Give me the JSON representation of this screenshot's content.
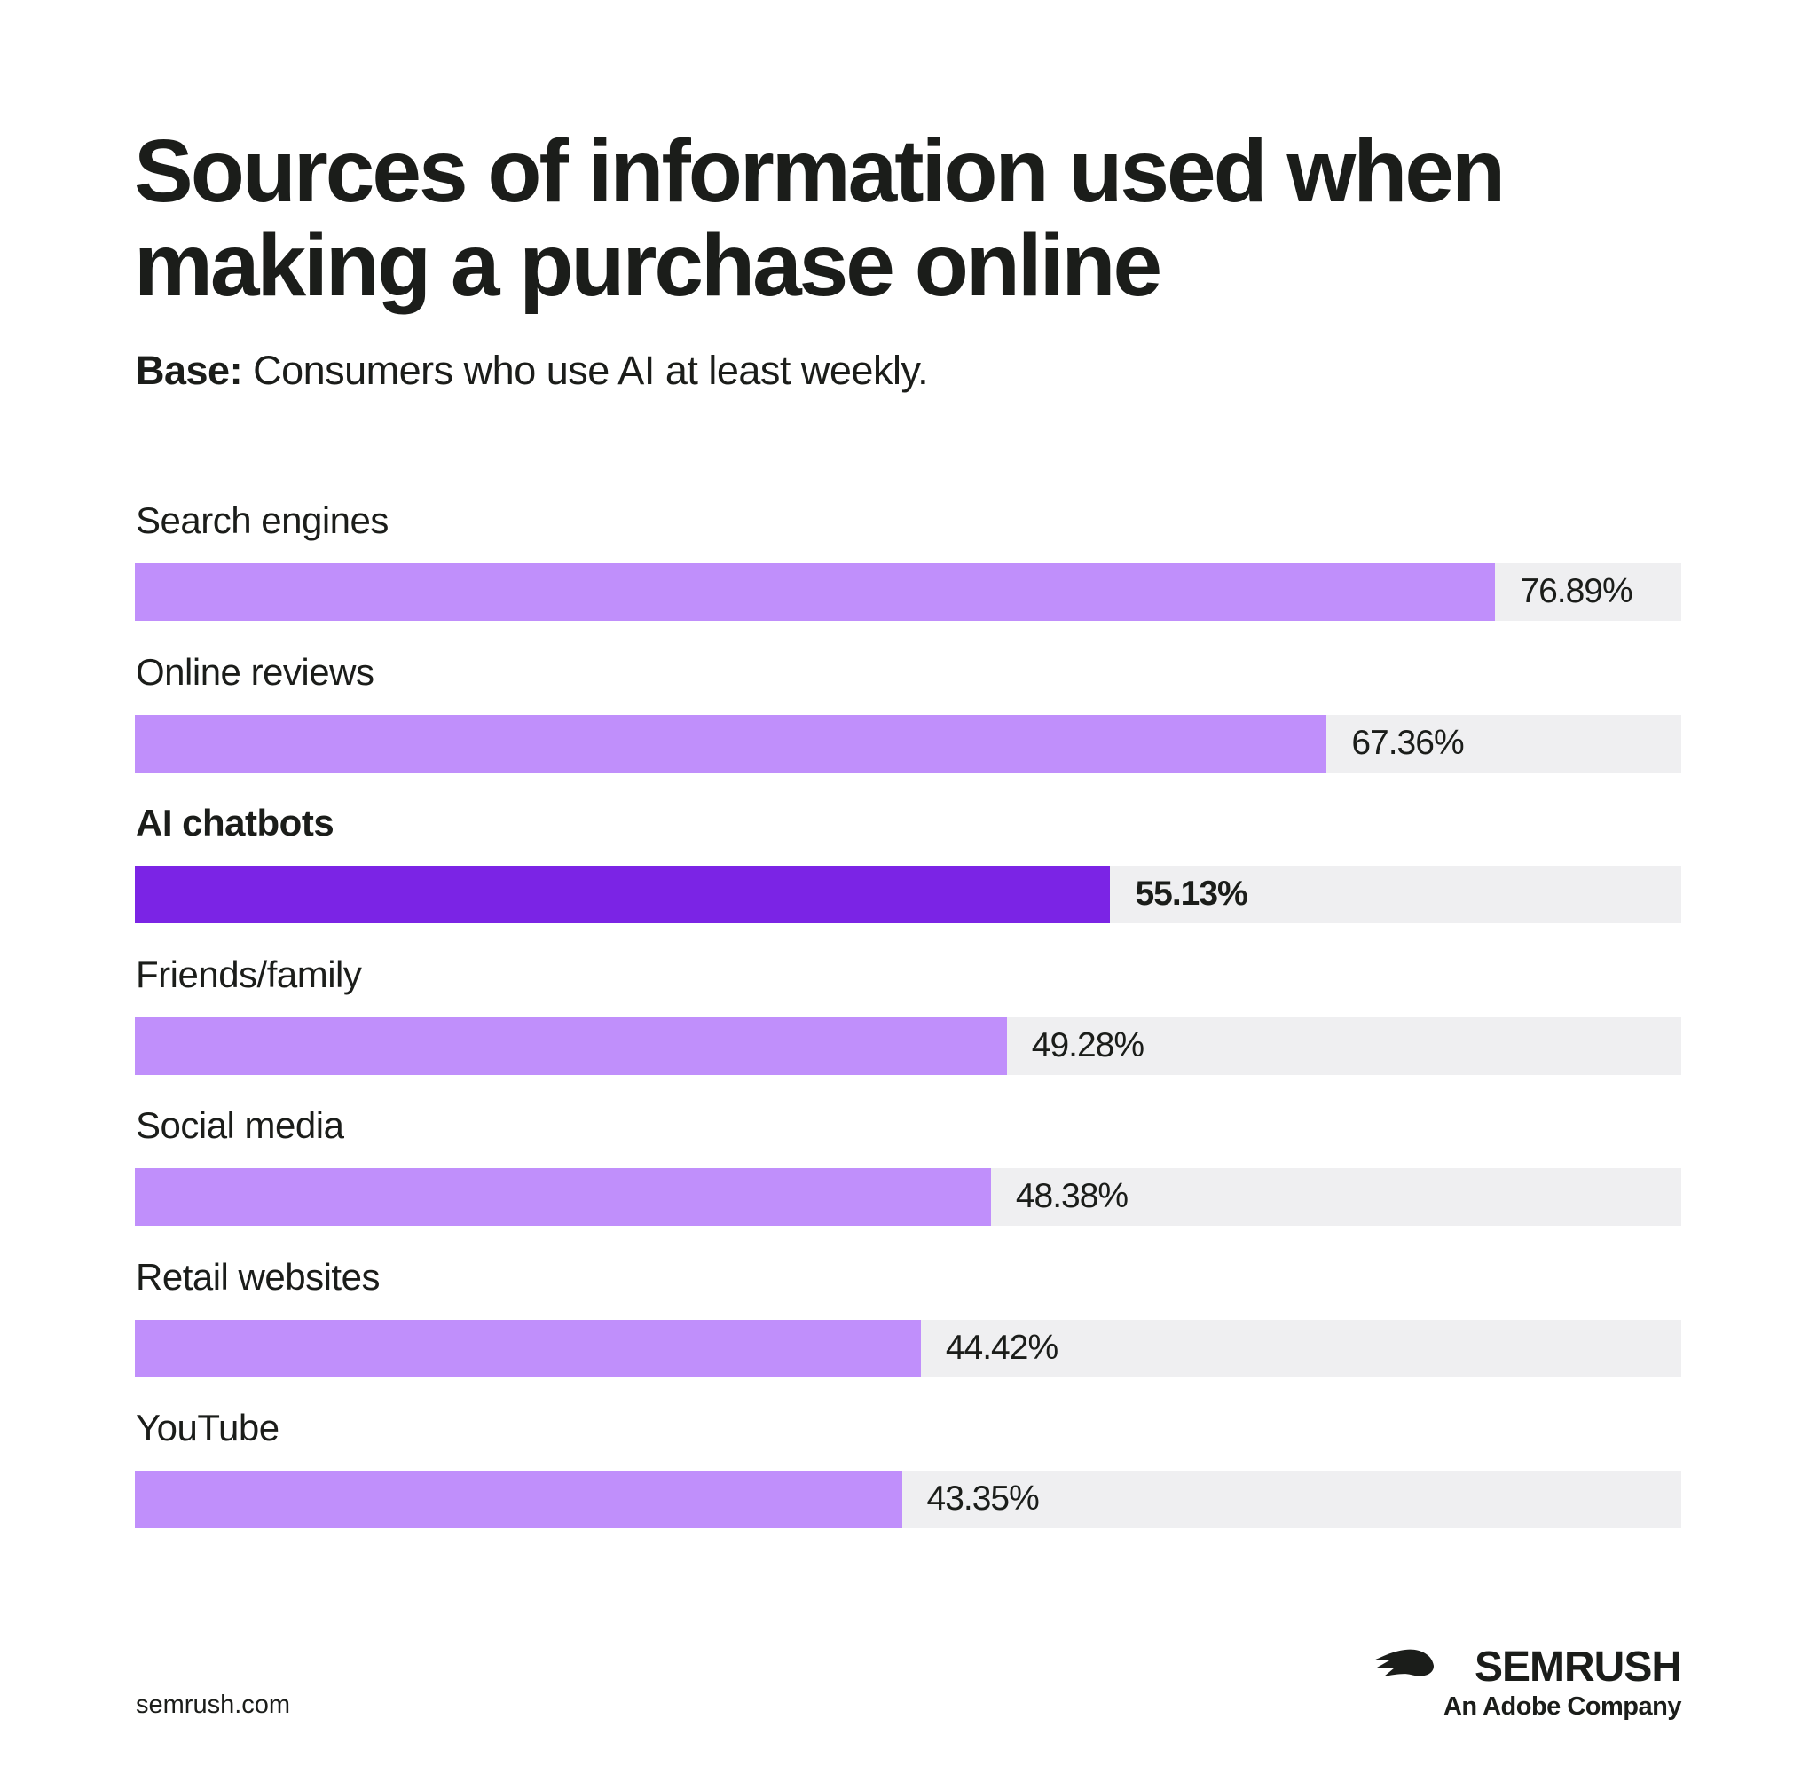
{
  "chart_data": {
    "type": "bar",
    "title": "Sources of information used when making a purchase online",
    "subtitle_label": "Base:",
    "subtitle": "Consumers who use AI at least weekly.",
    "categories": [
      "Search engines",
      "Online reviews",
      "AI chatbots",
      "Friends/family",
      "Social media",
      "Retail websites",
      "YouTube"
    ],
    "values": [
      76.89,
      67.36,
      55.13,
      49.28,
      48.38,
      44.42,
      43.35
    ],
    "value_labels": [
      "76.89%",
      "67.36%",
      "55.13%",
      "49.28%",
      "48.38%",
      "44.42%",
      "43.35%"
    ],
    "color": "#c08ffb",
    "highlight": "AI chatbots",
    "highlight_color": "#7b24e5",
    "track_color": "#efeff1",
    "xlim": [
      0,
      87.4
    ],
    "source": "semrush.com",
    "logo": "SEMRUSH",
    "logo_tagline": "An Adobe Company"
  }
}
